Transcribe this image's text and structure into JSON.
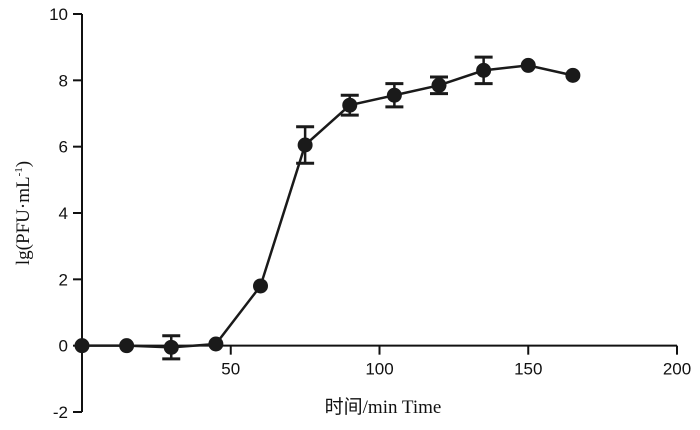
{
  "chart_data": {
    "type": "line",
    "xlabel": "时间/min Time",
    "ylabel_main": "lg(PFU·mL",
    "ylabel_sup": "-1",
    "ylabel_close": ")",
    "xlim": [
      0,
      200
    ],
    "ylim": [
      -2,
      10
    ],
    "x_ticks": [
      50,
      100,
      150,
      200
    ],
    "x_tick_labels": [
      "50",
      "100",
      "150",
      "200"
    ],
    "y_ticks": [
      -2,
      0,
      2,
      4,
      6,
      8,
      10
    ],
    "y_tick_labels": [
      "-2",
      "0",
      "2",
      "4",
      "6",
      "8",
      "10"
    ],
    "grid": false,
    "line_color": "#1a1a1a",
    "series": [
      {
        "x": [
          0,
          15,
          30,
          45,
          60,
          75,
          90,
          105,
          120,
          135,
          150,
          165
        ],
        "y": [
          0.0,
          0.0,
          -0.05,
          0.05,
          1.8,
          6.05,
          7.25,
          7.55,
          7.85,
          8.3,
          8.45,
          8.15
        ],
        "err": [
          0,
          0,
          0.35,
          0,
          0,
          0.55,
          0.3,
          0.35,
          0.25,
          0.4,
          0,
          0
        ]
      }
    ]
  }
}
